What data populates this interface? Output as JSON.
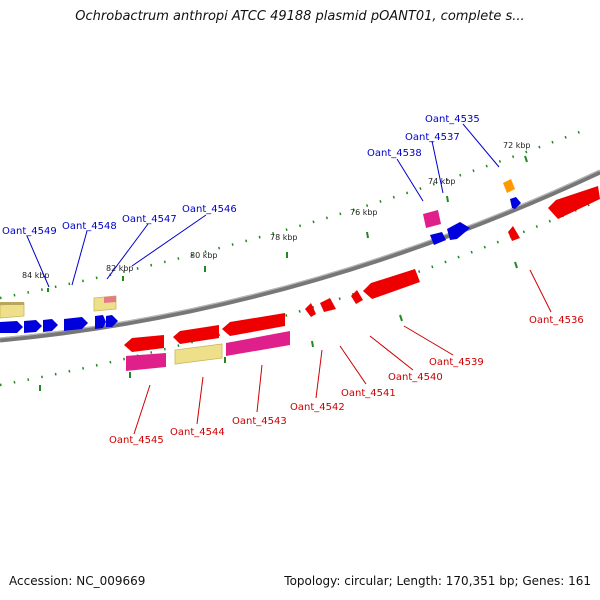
{
  "title": "Ochrobactrum anthropi ATCC 49188 plasmid pOANT01, complete s...",
  "footer": {
    "accession": "Accession: NC_009669",
    "summary": "Topology: circular; Length: 170,351 bp; Genes: 161"
  },
  "colors": {
    "forward_label": "#0000cc",
    "reverse_label": "#cc0000",
    "backbone": "#888888",
    "ticks": "#228822",
    "blue_gene": "#0000dd",
    "red_gene": "#ee0000",
    "magenta_gene": "#e0208a",
    "khaki_gene": "#eee08a",
    "orange_gene": "#ff9900",
    "pink_gene": "#e77a8a"
  },
  "kbp_labels": [
    "72 kbp",
    "74 kbp",
    "76 kbp",
    "78 kbp",
    "80 kbp",
    "82 kbp",
    "84 kbp"
  ],
  "gene_labels": {
    "forward": [
      "Oant_4535",
      "Oant_4537",
      "Oant_4538",
      "Oant_4546",
      "Oant_4547",
      "Oant_4548",
      "Oant_4549"
    ],
    "reverse": [
      "Oant_4536",
      "Oant_4539",
      "Oant_4540",
      "Oant_4541",
      "Oant_4542",
      "Oant_4543",
      "Oant_4544",
      "Oant_4545"
    ]
  }
}
